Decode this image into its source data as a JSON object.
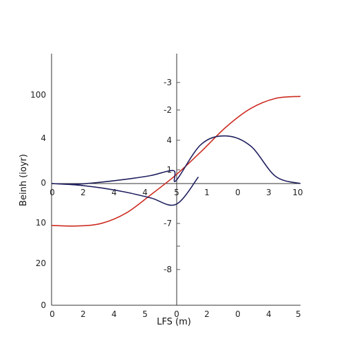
{
  "chart_data": {
    "type": "line",
    "xlabel": "LFS (m)",
    "ylabel": "Beinh (ioyr)",
    "left_y_ticks": [
      "100",
      "4",
      "0",
      "10",
      "20",
      "0"
    ],
    "right_y_ticks": [
      "-3",
      "-2",
      "4",
      "1",
      "-7",
      "-8"
    ],
    "bottom_x_ticks": [
      "0",
      "2",
      "4",
      "5",
      "0",
      "2",
      "0",
      "4",
      "5"
    ],
    "center_x_ticks": [
      "0",
      "2",
      "4",
      "4",
      "5",
      "1",
      "0",
      "3",
      "10"
    ],
    "grid": false,
    "legend": "none",
    "series": [
      {
        "color": "#cc2a1f",
        "x": [
          0,
          1,
          2,
          3,
          4,
          5,
          6,
          7,
          8,
          9,
          10
        ],
        "y": [
          -1.45,
          -1.47,
          -1.38,
          -1.02,
          -0.38,
          0.3,
          1.1,
          1.95,
          2.6,
          2.95,
          3.02
        ]
      },
      {
        "color": "#1f1f5e",
        "x": [
          0,
          1,
          2,
          3,
          4,
          4.9,
          5,
          6,
          7,
          8,
          9,
          10
        ],
        "y": [
          0,
          -0.02,
          0.05,
          0.15,
          0.28,
          0.45,
          0.1,
          1.35,
          1.65,
          1.3,
          0.25,
          0
        ]
      },
      {
        "color": "#1f1f5e",
        "x": [
          0,
          1,
          2,
          3,
          4,
          5,
          5.9
        ],
        "y": [
          0,
          -0.05,
          -0.15,
          -0.3,
          -0.5,
          -0.72,
          0.23
        ]
      }
    ]
  }
}
